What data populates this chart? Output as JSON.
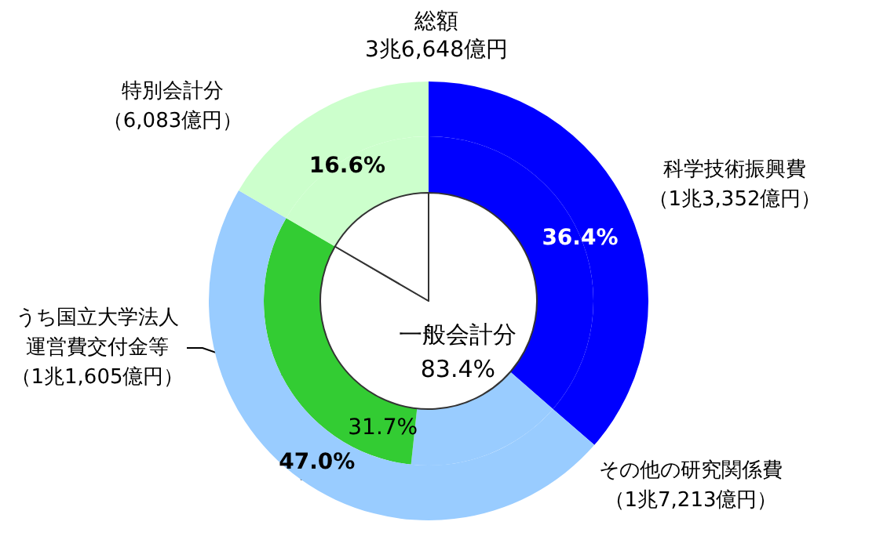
{
  "chart_data": [
    {
      "type": "donut",
      "title": "総額",
      "subtitle": "3兆6,648億円",
      "categories": [
        "科学技術振興費（1兆3,352億円）",
        "その他の研究関係費（1兆7,213億円）",
        "特別会計分（6,083億円）"
      ],
      "values": [
        36.4,
        47.0,
        16.6
      ],
      "colors": [
        "#0000ff",
        "#99ccff",
        "#ccffcc"
      ],
      "value_labels": [
        "36.4%",
        "47.0%",
        "16.6%"
      ]
    },
    {
      "type": "donut",
      "categories": [
        null,
        null,
        "うち国立大学法人運営費交付金等（1兆1,605億円）",
        null
      ],
      "values": [
        36.4,
        15.3,
        31.7,
        16.6
      ],
      "colors": [
        "#0000ff",
        "#99ccff",
        "#33cc33",
        "#ccffcc"
      ],
      "value_labels": [
        null,
        null,
        "31.7%",
        null
      ]
    },
    {
      "type": "pie",
      "categories": [
        "一般会計分",
        null
      ],
      "values": [
        83.4,
        16.6
      ],
      "colors": [
        "#ffffff",
        "#ffffff"
      ],
      "value_labels": [
        "83.4%",
        null
      ]
    }
  ]
}
